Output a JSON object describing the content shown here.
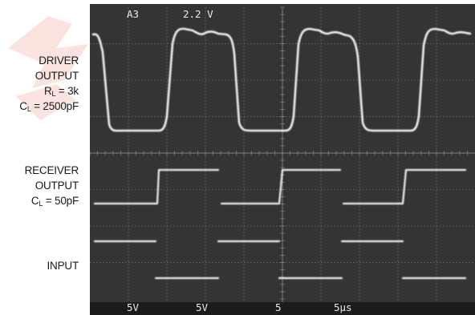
{
  "labels": {
    "driver_line1": "DRIVER",
    "driver_line2": "OUTPUT",
    "driver_rl_prefix": "R",
    "driver_rl_sub": "L",
    "driver_rl_value": " = 3k",
    "driver_cl_prefix": "C",
    "driver_cl_sub": "L",
    "driver_cl_value": " = 2500pF",
    "receiver_line1": "RECEIVER",
    "receiver_line2": "OUTPUT",
    "receiver_cl_prefix": "C",
    "receiver_cl_sub": "L",
    "receiver_cl_value": " = 50pF",
    "input": "INPUT"
  },
  "scope": {
    "top_readout": {
      "channel": "A3",
      "scale": "2.2 V"
    },
    "bottom_readout": {
      "ch1": "5V",
      "ch2": "5V",
      "ch3": "5",
      "timebase": "5µs"
    },
    "colors": {
      "screen": "#343434",
      "grid": "#8a8a8a",
      "trace": "#f2f2f2",
      "bottom_bar": "#1c1c1c"
    }
  }
}
